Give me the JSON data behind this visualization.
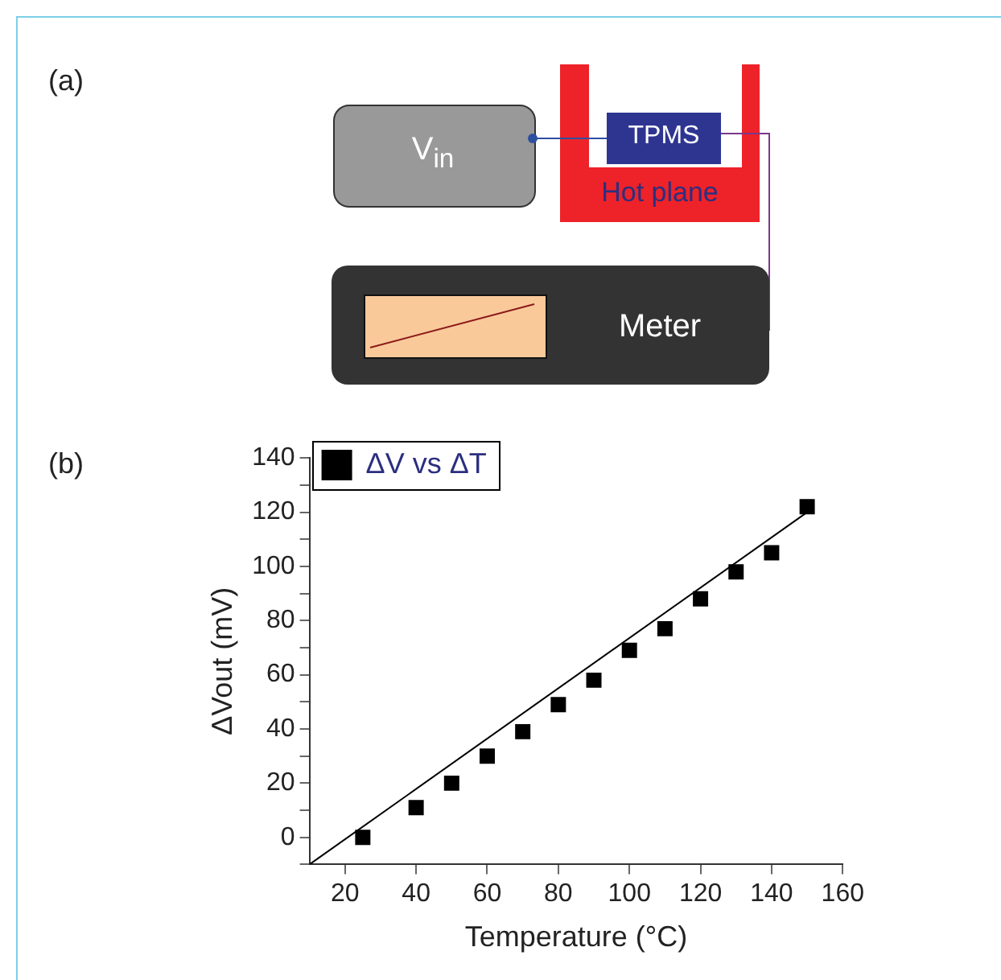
{
  "chart_data": {
    "type": "scatter",
    "xlabel": "Temperature (°C)",
    "ylabel": "ΔVout (mV)",
    "annotations": [
      "(a)",
      "V$_{in}$",
      "TPMS",
      "Hot plane",
      "Meter",
      "(b)"
    ],
    "x": [
      25,
      40,
      50,
      60,
      70,
      80,
      90,
      100,
      110,
      120,
      130,
      140,
      150
    ],
    "series": [
      {
        "name": "ΔV vs ΔT",
        "color": "#000000",
        "marker": "square",
        "values": [
          0,
          11,
          20,
          30,
          39,
          49,
          58,
          69,
          77,
          88,
          98,
          105,
          122
        ]
      },
      {
        "type": "line",
        "color": "#000000",
        "marker": "none",
        "x": [
          10,
          150
        ],
        "values": [
          -10,
          120
        ]
      }
    ],
    "xlim": [
      10,
      160
    ],
    "xticks": [
      20,
      40,
      60,
      80,
      100,
      120,
      140,
      160
    ],
    "ylim": [
      -10,
      140
    ],
    "yticks": [
      {
        "value": -10,
        "label": null
      },
      0,
      {
        "value": 10,
        "label": null
      },
      20,
      {
        "value": 30,
        "label": null
      },
      40,
      {
        "value": 50,
        "label": null
      },
      60,
      {
        "value": 70,
        "label": null
      },
      80,
      {
        "value": 90,
        "label": null
      },
      100,
      {
        "value": 110,
        "label": null
      },
      120,
      {
        "value": 130,
        "label": null
      },
      140
    ],
    "grid": false,
    "legend": "top left"
  }
}
